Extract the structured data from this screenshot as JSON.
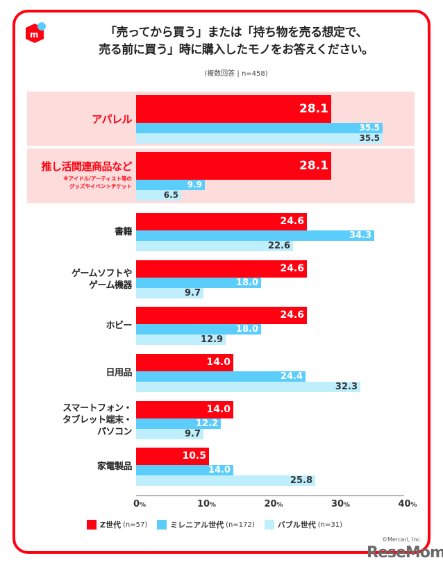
{
  "header": {
    "title_line1": "「売ってから買う」または「持ち物を売る想定で、",
    "title_line2": "売る前に買う」時に購入したモノをお答えください。",
    "subtitle": "(複数回答 | n=458)",
    "logo_letter": "m"
  },
  "colors": {
    "z": "#ff0211",
    "millennial": "#5bcdfb",
    "bubble": "#bfeefd",
    "highlight_bg": "#fddcdc",
    "frame": "#ff0211"
  },
  "chart_data": {
    "type": "bar",
    "orientation": "horizontal",
    "title": "「売ってから買う」または「持ち物を売る想定で、売る前に買う」時に購入したモノをお答えください。",
    "subtitle": "(複数回答 | n=458)",
    "categories": [
      "アパレル",
      "推し活関連商品など",
      "書籍",
      "ゲームソフトやゲーム機器",
      "ホビー",
      "日用品",
      "スマートフォン・タブレット端末・パソコン",
      "家電製品"
    ],
    "category_lines": [
      [
        "アパレル"
      ],
      [
        "推し活関連商品など"
      ],
      [
        "書籍"
      ],
      [
        "ゲームソフトや",
        "ゲーム機器"
      ],
      [
        "ホビー"
      ],
      [
        "日用品"
      ],
      [
        "スマートフォン・",
        "タブレット端末・",
        "パソコン"
      ],
      [
        "家電製品"
      ]
    ],
    "category_notes": [
      null,
      [
        "※アイドル/アーティスト等の",
        "グッズやイベントチケット"
      ],
      null,
      null,
      null,
      null,
      null,
      null
    ],
    "highlighted": [
      true,
      true,
      false,
      false,
      false,
      false,
      false,
      false
    ],
    "series": [
      {
        "name": "Z世代",
        "n_label": "(n=57)",
        "values": [
          28.1,
          28.1,
          24.6,
          24.6,
          24.6,
          14.0,
          14.0,
          10.5
        ]
      },
      {
        "name": "ミレニアル世代",
        "n_label": "(n=172)",
        "values": [
          35.5,
          9.9,
          34.3,
          18.0,
          18.0,
          24.4,
          12.2,
          14.0
        ]
      },
      {
        "name": "バブル世代",
        "n_label": "(n=31)",
        "values": [
          35.5,
          6.5,
          22.6,
          9.7,
          12.9,
          32.3,
          9.7,
          25.8
        ]
      }
    ],
    "xlim": [
      0,
      40
    ],
    "xticks": [
      0,
      10,
      20,
      30,
      40
    ],
    "xtick_suffix": "%",
    "xlabel": "",
    "ylabel": "",
    "grid": false,
    "legend": "bottom"
  },
  "footer": {
    "credit": "©Mercari, Inc.",
    "watermark": "ReseMom"
  }
}
